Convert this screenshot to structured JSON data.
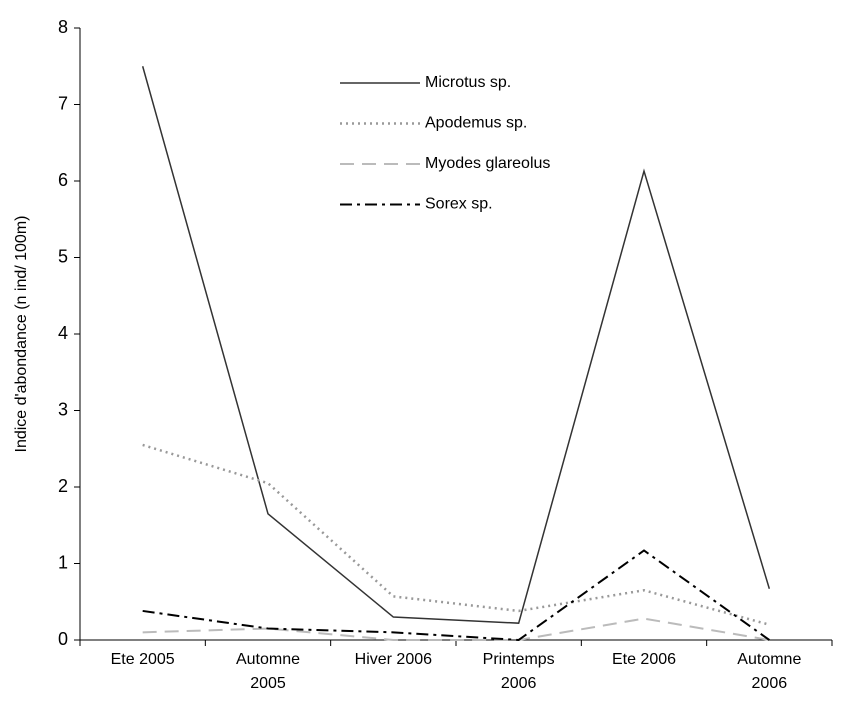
{
  "chart_data": {
    "type": "line",
    "y_label": "Indice d'abondance (n ind/ 100m)",
    "categories": [
      "Ete 2005",
      "Automne 2005",
      "Hiver 2006",
      "Printemps 2006",
      "Ete 2006",
      "Automne 2006"
    ],
    "series": [
      {
        "name": "Microtus sp.",
        "color": "#333333",
        "style": "solid",
        "values": [
          7.5,
          1.65,
          0.3,
          0.22,
          6.13,
          0.67
        ]
      },
      {
        "name": "Apodemus sp.",
        "color": "#999999",
        "style": "dotted",
        "values": [
          2.55,
          2.05,
          0.57,
          0.38,
          0.65,
          0.2
        ]
      },
      {
        "name": "Myodes glareolus",
        "color": "#bbbbbb",
        "style": "dashed",
        "values": [
          0.1,
          0.15,
          0.0,
          0.0,
          0.28,
          0.0
        ]
      },
      {
        "name": "Sorex sp.",
        "color": "#000000",
        "style": "dashdot",
        "values": [
          0.38,
          0.15,
          0.1,
          0.0,
          1.17,
          0.0
        ]
      }
    ],
    "ylim": [
      0,
      8
    ],
    "yticks": [
      0,
      1,
      2,
      3,
      4,
      5,
      6,
      7,
      8
    ],
    "grid": false,
    "legend_position": "top-center"
  }
}
